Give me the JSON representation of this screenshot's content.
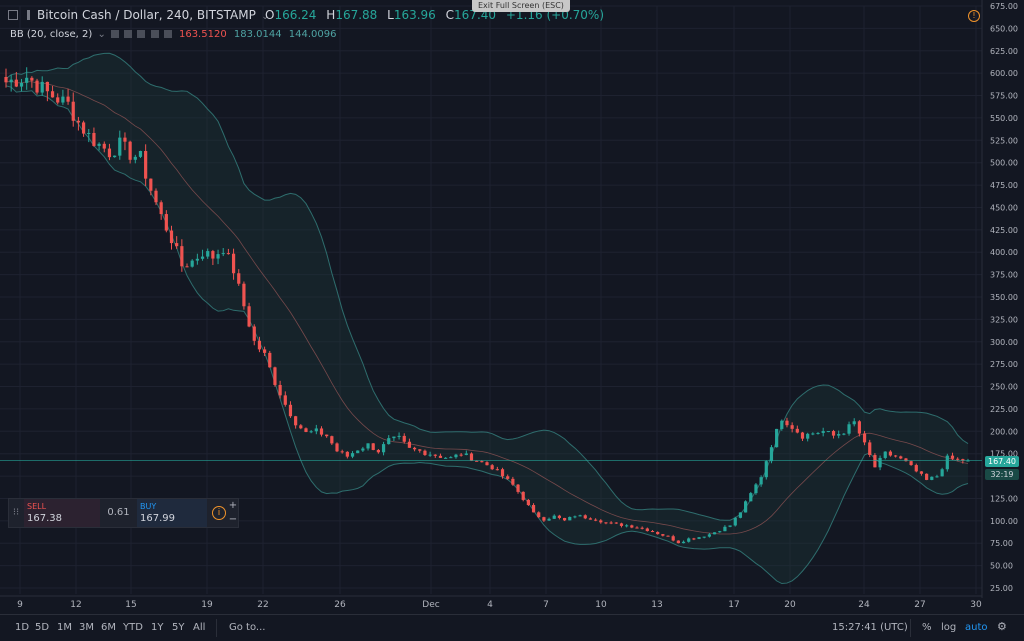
{
  "header": {
    "symbol": "Bitcoin Cash / Dollar, 240, BITSTAMP",
    "o_label": "O",
    "o_value": "166.24",
    "h_label": "H",
    "h_value": "167.88",
    "l_label": "L",
    "l_value": "163.96",
    "c_label": "C",
    "c_value": "167.40",
    "change": "+1.16 (+0.70%)",
    "indicator": "BB (20, close, 2)",
    "bb_basis": "163.5120",
    "bb_upper": "183.0144",
    "bb_lower": "144.0096",
    "exit_fullscreen": "Exit Full Screen (ESC)"
  },
  "trade": {
    "sell_label": "SELL",
    "sell_price": "167.38",
    "spread": "0.61",
    "buy_label": "BUY",
    "buy_price": "167.99",
    "plus": "+",
    "minus": "−"
  },
  "price_labels": {
    "last": "167.40",
    "countdown": "32:19"
  },
  "bottom": {
    "timeframes": [
      "1D",
      "5D",
      "1M",
      "3M",
      "6M",
      "YTD",
      "1Y",
      "5Y",
      "All"
    ],
    "goto": "Go to...",
    "time": "15:27:41 (UTC)",
    "percent": "%",
    "log": "log",
    "auto": "auto"
  },
  "colors": {
    "background": "#131722",
    "up": "#26a69a",
    "down": "#ef5350",
    "bb_band": "#2e6d6d",
    "bb_basis": "#a05a5a",
    "last_price": "#26a69a",
    "accent": "#2196f3"
  },
  "chart_data": {
    "type": "candlestick",
    "title": "Bitcoin Cash / Dollar, 240, BITSTAMP",
    "ylim": [
      25,
      675
    ],
    "y_ticks": [
      25,
      50,
      75,
      100,
      125,
      150,
      175,
      200,
      225,
      250,
      275,
      300,
      325,
      350,
      375,
      400,
      425,
      450,
      475,
      500,
      525,
      550,
      575,
      600,
      625,
      650,
      675
    ],
    "x_ticks": [
      "9",
      "12",
      "15",
      "19",
      "22",
      "26",
      "Dec",
      "4",
      "7",
      "10",
      "13",
      "17",
      "20",
      "24",
      "27",
      "30"
    ],
    "grid": true,
    "last_price": 167.4,
    "close_path": [
      {
        "x": 0,
        "y": 590
      },
      {
        "x": 4,
        "y": 596
      },
      {
        "x": 8,
        "y": 578
      },
      {
        "x": 12,
        "y": 565
      },
      {
        "x": 14,
        "y": 545
      },
      {
        "x": 16,
        "y": 530
      },
      {
        "x": 18,
        "y": 520
      },
      {
        "x": 20,
        "y": 512
      },
      {
        "x": 22,
        "y": 520
      },
      {
        "x": 24,
        "y": 510
      },
      {
        "x": 26,
        "y": 505
      },
      {
        "x": 28,
        "y": 470
      },
      {
        "x": 30,
        "y": 440
      },
      {
        "x": 32,
        "y": 415
      },
      {
        "x": 34,
        "y": 385
      },
      {
        "x": 36,
        "y": 390
      },
      {
        "x": 38,
        "y": 400
      },
      {
        "x": 40,
        "y": 395
      },
      {
        "x": 42,
        "y": 405
      },
      {
        "x": 44,
        "y": 380
      },
      {
        "x": 46,
        "y": 340
      },
      {
        "x": 48,
        "y": 300
      },
      {
        "x": 50,
        "y": 285
      },
      {
        "x": 52,
        "y": 255
      },
      {
        "x": 54,
        "y": 230
      },
      {
        "x": 56,
        "y": 210
      },
      {
        "x": 58,
        "y": 198
      },
      {
        "x": 60,
        "y": 200
      },
      {
        "x": 62,
        "y": 195
      },
      {
        "x": 64,
        "y": 178
      },
      {
        "x": 66,
        "y": 172
      },
      {
        "x": 68,
        "y": 180
      },
      {
        "x": 70,
        "y": 185
      },
      {
        "x": 72,
        "y": 178
      },
      {
        "x": 74,
        "y": 190
      },
      {
        "x": 76,
        "y": 192
      },
      {
        "x": 78,
        "y": 180
      },
      {
        "x": 80,
        "y": 178
      },
      {
        "x": 82,
        "y": 175
      },
      {
        "x": 84,
        "y": 172
      },
      {
        "x": 86,
        "y": 170
      },
      {
        "x": 88,
        "y": 175
      },
      {
        "x": 90,
        "y": 170
      },
      {
        "x": 92,
        "y": 165
      },
      {
        "x": 94,
        "y": 160
      },
      {
        "x": 96,
        "y": 150
      },
      {
        "x": 98,
        "y": 140
      },
      {
        "x": 100,
        "y": 125
      },
      {
        "x": 102,
        "y": 108
      },
      {
        "x": 104,
        "y": 102
      },
      {
        "x": 106,
        "y": 105
      },
      {
        "x": 108,
        "y": 100
      },
      {
        "x": 110,
        "y": 106
      },
      {
        "x": 112,
        "y": 104
      },
      {
        "x": 114,
        "y": 102
      },
      {
        "x": 116,
        "y": 98
      },
      {
        "x": 118,
        "y": 96
      },
      {
        "x": 120,
        "y": 95
      },
      {
        "x": 122,
        "y": 93
      },
      {
        "x": 124,
        "y": 90
      },
      {
        "x": 126,
        "y": 86
      },
      {
        "x": 128,
        "y": 82
      },
      {
        "x": 130,
        "y": 76
      },
      {
        "x": 132,
        "y": 80
      },
      {
        "x": 134,
        "y": 82
      },
      {
        "x": 136,
        "y": 85
      },
      {
        "x": 138,
        "y": 90
      },
      {
        "x": 140,
        "y": 95
      },
      {
        "x": 142,
        "y": 110
      },
      {
        "x": 144,
        "y": 130
      },
      {
        "x": 146,
        "y": 150
      },
      {
        "x": 148,
        "y": 185
      },
      {
        "x": 150,
        "y": 215
      },
      {
        "x": 152,
        "y": 205
      },
      {
        "x": 154,
        "y": 195
      },
      {
        "x": 156,
        "y": 198
      },
      {
        "x": 158,
        "y": 200
      },
      {
        "x": 160,
        "y": 195
      },
      {
        "x": 162,
        "y": 200
      },
      {
        "x": 164,
        "y": 210
      },
      {
        "x": 166,
        "y": 185
      },
      {
        "x": 168,
        "y": 160
      },
      {
        "x": 170,
        "y": 175
      },
      {
        "x": 172,
        "y": 172
      },
      {
        "x": 174,
        "y": 165
      },
      {
        "x": 176,
        "y": 155
      },
      {
        "x": 178,
        "y": 145
      },
      {
        "x": 180,
        "y": 150
      },
      {
        "x": 182,
        "y": 170
      },
      {
        "x": 184,
        "y": 168
      },
      {
        "x": 186,
        "y": 167.4
      }
    ]
  }
}
